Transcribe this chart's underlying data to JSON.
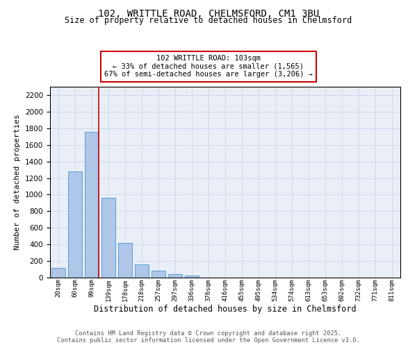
{
  "title_line1": "102, WRITTLE ROAD, CHELMSFORD, CM1 3BU",
  "title_line2": "Size of property relative to detached houses in Chelmsford",
  "xlabel": "Distribution of detached houses by size in Chelmsford",
  "ylabel": "Number of detached properties",
  "categories": [
    "20sqm",
    "60sqm",
    "99sqm",
    "139sqm",
    "178sqm",
    "218sqm",
    "257sqm",
    "297sqm",
    "336sqm",
    "376sqm",
    "416sqm",
    "455sqm",
    "495sqm",
    "534sqm",
    "574sqm",
    "613sqm",
    "653sqm",
    "692sqm",
    "732sqm",
    "771sqm",
    "811sqm"
  ],
  "values": [
    120,
    1280,
    1760,
    960,
    420,
    155,
    80,
    40,
    25,
    0,
    0,
    0,
    0,
    0,
    0,
    0,
    0,
    0,
    0,
    0,
    0
  ],
  "bar_color": "#aec6e8",
  "bar_edge_color": "#5a9fd4",
  "vline_x_index": 2,
  "vline_color": "#cc0000",
  "annotation_line1": "102 WRITTLE ROAD: 103sqm",
  "annotation_line2": "← 33% of detached houses are smaller (1,565)",
  "annotation_line3": "67% of semi-detached houses are larger (3,206) →",
  "annotation_box_color": "#ffffff",
  "annotation_box_edge": "#cc0000",
  "ylim": [
    0,
    2300
  ],
  "yticks": [
    0,
    200,
    400,
    600,
    800,
    1000,
    1200,
    1400,
    1600,
    1800,
    2000,
    2200
  ],
  "grid_color": "#d0d8e8",
  "bg_color": "#eaeff7",
  "footer_line1": "Contains HM Land Registry data © Crown copyright and database right 2025.",
  "footer_line2": "Contains public sector information licensed under the Open Government Licence v3.0."
}
